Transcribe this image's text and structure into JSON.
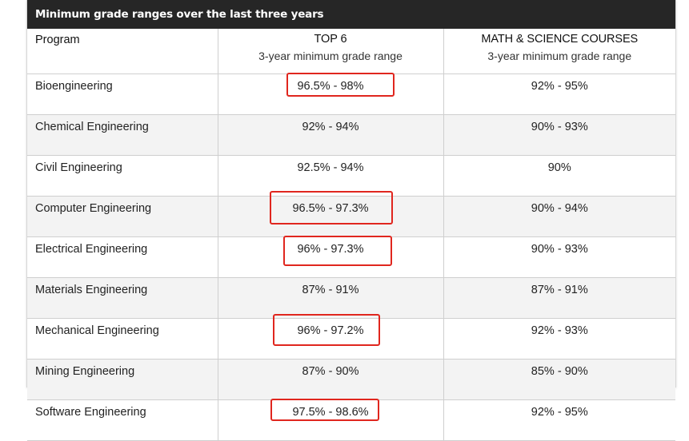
{
  "title": "Minimum grade ranges over the last three years",
  "columns": {
    "program": "Program",
    "top6": {
      "name": "TOP 6",
      "sub": "3-year minimum grade range"
    },
    "math": {
      "name": "MATH & SCIENCE COURSES",
      "sub": "3-year minimum grade range"
    }
  },
  "rows": [
    {
      "program": "Bioengineering",
      "top6": "96.5% - 98%",
      "math": "92% - 95%",
      "highlighted": true
    },
    {
      "program": "Chemical Engineering",
      "top6": "92% - 94%",
      "math": "90% - 93%",
      "highlighted": false
    },
    {
      "program": "Civil Engineering",
      "top6": "92.5% - 94%",
      "math": "90%",
      "highlighted": false
    },
    {
      "program": "Computer Engineering",
      "top6": "96.5% - 97.3%",
      "math": "90% - 94%",
      "highlighted": true
    },
    {
      "program": "Electrical Engineering",
      "top6": "96% - 97.3%",
      "math": "90% - 93%",
      "highlighted": true
    },
    {
      "program": "Materials Engineering",
      "top6": "87% - 91%",
      "math": "87% - 91%",
      "highlighted": false
    },
    {
      "program": "Mechanical Engineering",
      "top6": "96% - 97.2%",
      "math": "92% - 93%",
      "highlighted": true
    },
    {
      "program": "Mining Engineering",
      "top6": "87% - 90%",
      "math": "85% - 90%",
      "highlighted": false
    },
    {
      "program": "Software Engineering",
      "top6": "97.5% - 98.6%",
      "math": "92% - 95%",
      "highlighted": true
    }
  ],
  "colors": {
    "header": "#262626",
    "highlight": "#e0261e",
    "stripe": "#f3f3f3"
  }
}
